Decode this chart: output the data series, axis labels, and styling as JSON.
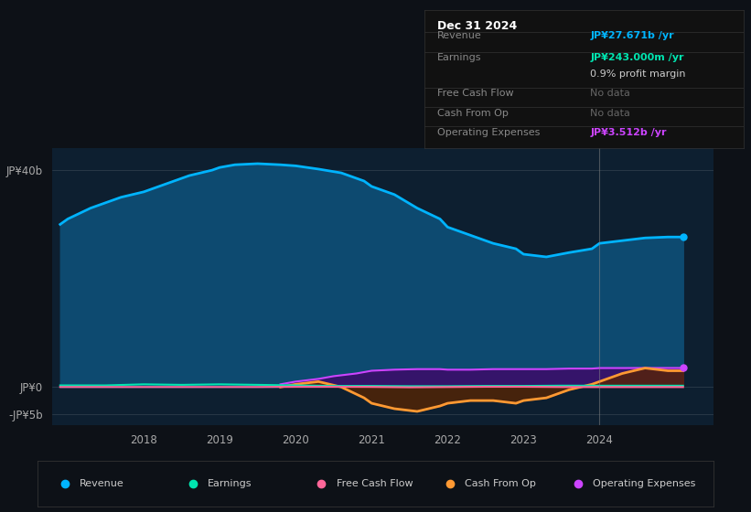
{
  "background_color": "#0d1117",
  "plot_bg_color": "#0d1f30",
  "yticks": [
    "JP¥40b",
    "JP¥0",
    "-JP¥5b"
  ],
  "ytick_values": [
    40,
    0,
    -5
  ],
  "xticks": [
    "2018",
    "2019",
    "2020",
    "2021",
    "2022",
    "2023",
    "2024"
  ],
  "xlim": [
    2016.8,
    2025.5
  ],
  "ylim": [
    -7,
    44
  ],
  "revenue": {
    "x": [
      2016.9,
      2017.0,
      2017.3,
      2017.7,
      2018.0,
      2018.3,
      2018.6,
      2018.9,
      2019.0,
      2019.2,
      2019.5,
      2019.8,
      2020.0,
      2020.3,
      2020.6,
      2020.9,
      2021.0,
      2021.3,
      2021.6,
      2021.9,
      2022.0,
      2022.3,
      2022.6,
      2022.9,
      2023.0,
      2023.3,
      2023.6,
      2023.9,
      2024.0,
      2024.3,
      2024.6,
      2024.9,
      2025.1
    ],
    "y": [
      30,
      31,
      33,
      35,
      36,
      37.5,
      39,
      40,
      40.5,
      41,
      41.2,
      41,
      40.8,
      40.2,
      39.5,
      38.0,
      37.0,
      35.5,
      33.0,
      31.0,
      29.5,
      28.0,
      26.5,
      25.5,
      24.5,
      24.0,
      24.8,
      25.5,
      26.5,
      27.0,
      27.5,
      27.671,
      27.671
    ],
    "color": "#00b4ff",
    "fill_color": "#0d4a70",
    "linewidth": 2.0
  },
  "earnings": {
    "x": [
      2016.9,
      2017.5,
      2018.0,
      2018.5,
      2019.0,
      2019.5,
      2020.0,
      2020.5,
      2021.0,
      2021.5,
      2022.0,
      2022.5,
      2023.0,
      2023.5,
      2024.0,
      2024.5,
      2025.1
    ],
    "y": [
      0.3,
      0.3,
      0.5,
      0.4,
      0.5,
      0.4,
      0.3,
      0.2,
      0.2,
      0.15,
      0.15,
      0.2,
      0.2,
      0.25,
      0.243,
      0.243,
      0.243
    ],
    "color": "#00e5b0",
    "linewidth": 1.5
  },
  "free_cash_flow": {
    "x": [
      2016.9,
      2017.5,
      2018.0,
      2018.5,
      2019.0,
      2019.5,
      2020.0,
      2020.5,
      2021.0,
      2021.5,
      2022.0,
      2022.5,
      2023.0,
      2023.5,
      2024.0,
      2024.5,
      2025.1
    ],
    "y": [
      0.0,
      0.0,
      0.0,
      0.0,
      0.0,
      0.0,
      0.05,
      0.05,
      0.02,
      -0.05,
      0.0,
      0.05,
      0.05,
      0.0,
      0.0,
      0.0,
      0.0
    ],
    "color": "#ff6699",
    "linewidth": 1.5
  },
  "cash_from_op": {
    "x": [
      2019.8,
      2020.0,
      2020.3,
      2020.6,
      2020.9,
      2021.0,
      2021.3,
      2021.6,
      2021.9,
      2022.0,
      2022.3,
      2022.6,
      2022.9,
      2023.0,
      2023.3,
      2023.6,
      2023.9,
      2024.0,
      2024.3,
      2024.6,
      2024.9,
      2025.1
    ],
    "y": [
      0.0,
      0.5,
      1.0,
      0.0,
      -2.0,
      -3.0,
      -4.0,
      -4.5,
      -3.5,
      -3.0,
      -2.5,
      -2.5,
      -3.0,
      -2.5,
      -2.0,
      -0.5,
      0.5,
      1.0,
      2.5,
      3.5,
      3.0,
      3.0
    ],
    "color": "#ff9933",
    "fill_color": "#5a2500",
    "linewidth": 2.0
  },
  "operating_expenses": {
    "x": [
      2019.8,
      2020.0,
      2020.3,
      2020.5,
      2020.8,
      2021.0,
      2021.3,
      2021.6,
      2021.9,
      2022.0,
      2022.3,
      2022.6,
      2022.9,
      2023.0,
      2023.3,
      2023.6,
      2023.9,
      2024.0,
      2024.3,
      2024.6,
      2024.9,
      2025.1
    ],
    "y": [
      0.5,
      1.0,
      1.5,
      2.0,
      2.5,
      3.0,
      3.2,
      3.3,
      3.3,
      3.2,
      3.2,
      3.3,
      3.3,
      3.3,
      3.3,
      3.4,
      3.4,
      3.5,
      3.5,
      3.512,
      3.512,
      3.512
    ],
    "color": "#cc44ff",
    "fill_color": "#3a0f6a",
    "linewidth": 1.5
  },
  "vline_x": 2024.0,
  "legend": [
    {
      "label": "Revenue",
      "color": "#00b4ff"
    },
    {
      "label": "Earnings",
      "color": "#00e5b0"
    },
    {
      "label": "Free Cash Flow",
      "color": "#ff6699"
    },
    {
      "label": "Cash From Op",
      "color": "#ff9933"
    },
    {
      "label": "Operating Expenses",
      "color": "#cc44ff"
    }
  ]
}
